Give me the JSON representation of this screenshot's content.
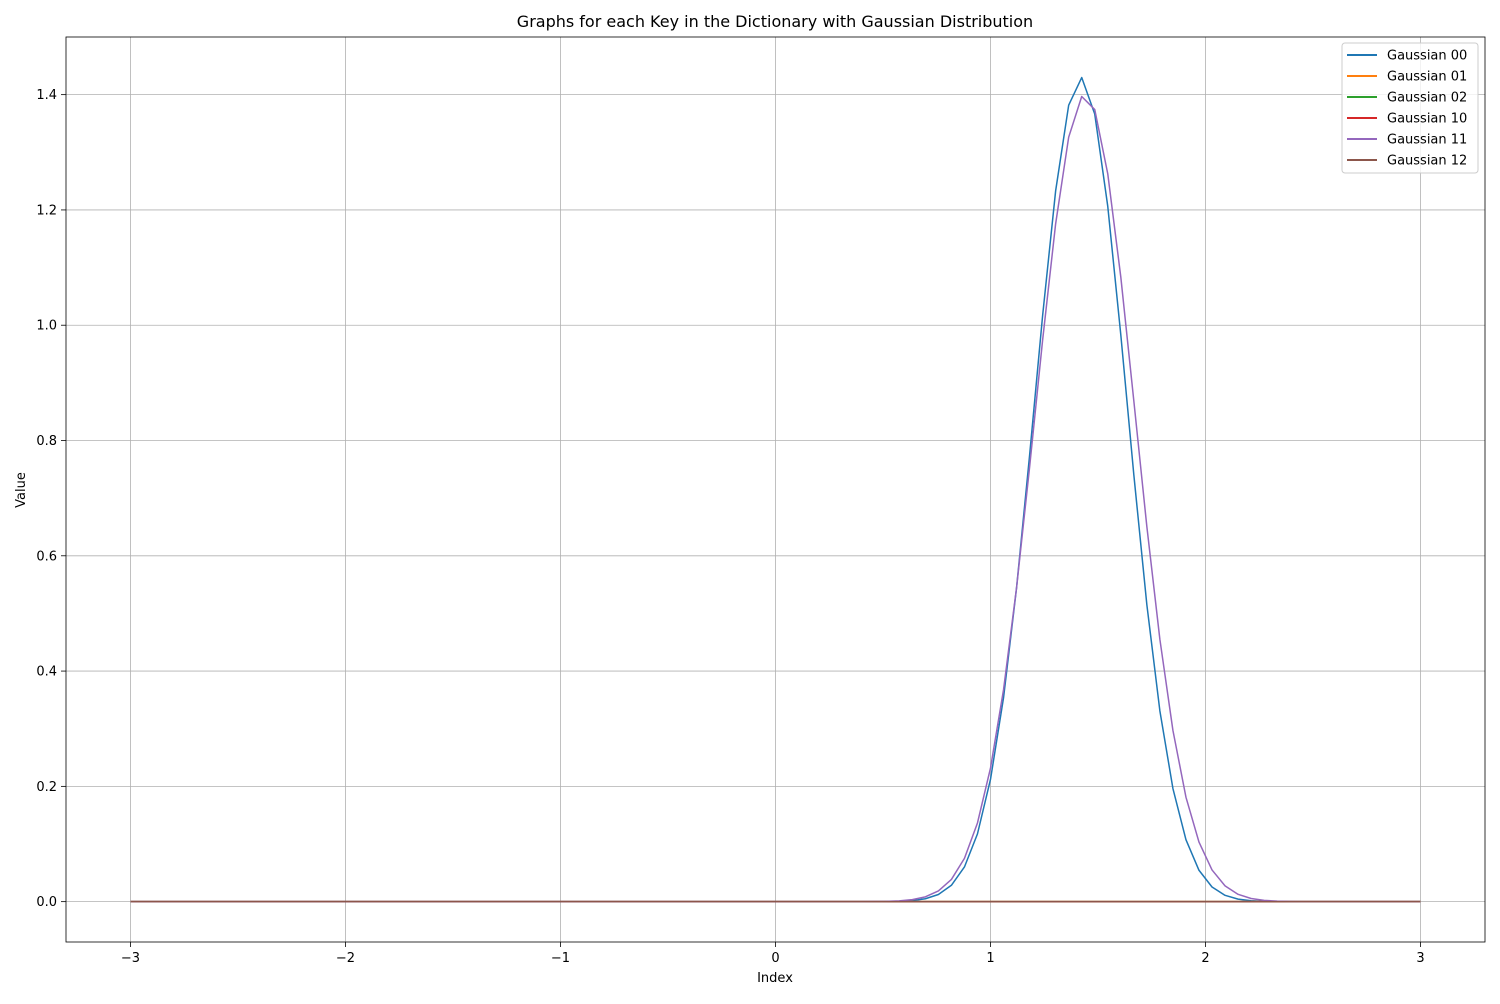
{
  "chart_data": {
    "type": "line",
    "title": "Graphs for each Key in the Dictionary with Gaussian Distribution",
    "xlabel": "Index",
    "ylabel": "Value",
    "xlim": [
      -3.3,
      3.3
    ],
    "ylim": [
      -0.07,
      1.5
    ],
    "xticks": [
      -3,
      -2,
      -1,
      0,
      1,
      2,
      3
    ],
    "xtick_labels": [
      "−3",
      "−2",
      "−1",
      "0",
      "1",
      "2",
      "3"
    ],
    "yticks": [
      0.0,
      0.2,
      0.4,
      0.6,
      0.8,
      1.0,
      1.2,
      1.4
    ],
    "ytick_labels": [
      "0.0",
      "0.2",
      "0.4",
      "0.6",
      "0.8",
      "1.0",
      "1.2",
      "1.4"
    ],
    "grid": true,
    "legend_position": "top-right",
    "x_range": [
      -3,
      3
    ],
    "num_points": 100,
    "series": [
      {
        "name": "Gaussian 00",
        "color": "#1f77b4",
        "amplitude": 1.43,
        "mean": 1.42,
        "std": 0.215
      },
      {
        "name": "Gaussian 01",
        "color": "#ff7f0e",
        "amplitude": 0.0,
        "mean": 0.0,
        "std": 1.0
      },
      {
        "name": "Gaussian 02",
        "color": "#2ca02c",
        "amplitude": 0.0,
        "mean": 0.0,
        "std": 1.0
      },
      {
        "name": "Gaussian 10",
        "color": "#d62728",
        "amplitude": 0.0,
        "mean": 0.0,
        "std": 1.0
      },
      {
        "name": "Gaussian 11",
        "color": "#9467bd",
        "amplitude": 1.4,
        "mean": 1.44,
        "std": 0.232
      },
      {
        "name": "Gaussian 12",
        "color": "#8c564b",
        "amplitude": 0.0,
        "mean": 0.0,
        "std": 1.0
      }
    ]
  }
}
